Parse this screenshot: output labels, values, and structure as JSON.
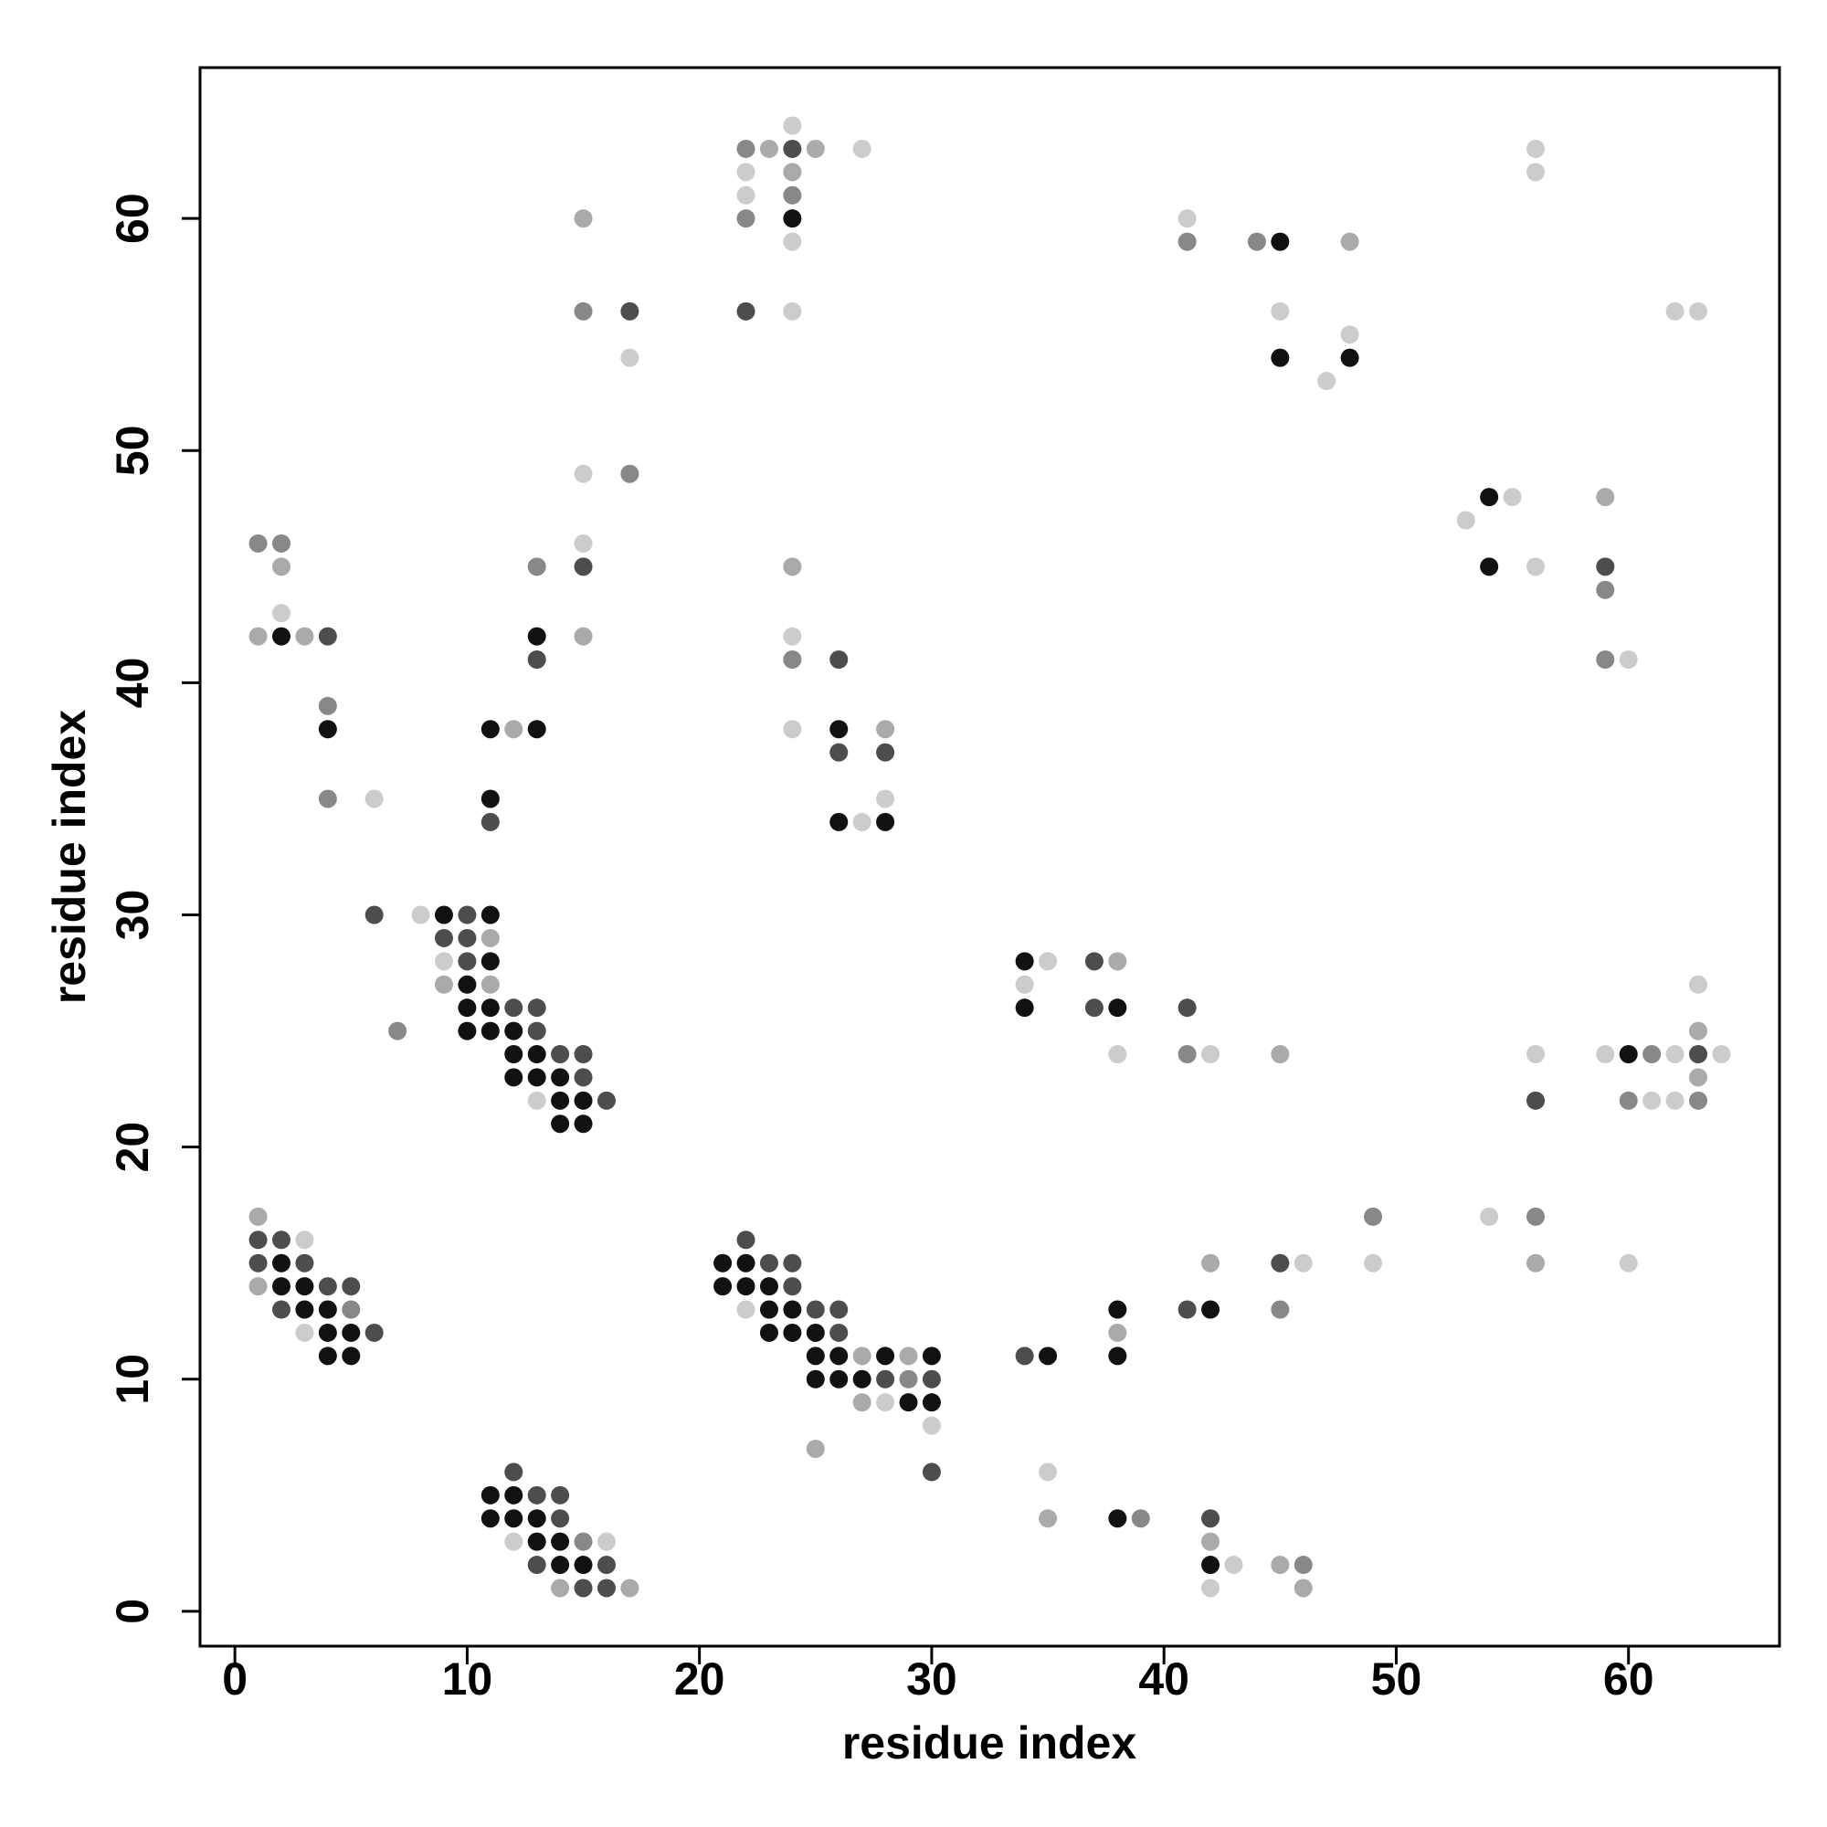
{
  "chart_data": {
    "type": "scatter",
    "xlabel": "residue index",
    "ylabel": "residue index",
    "xlim": [
      -1.5,
      66.5
    ],
    "ylim": [
      -1.5,
      66.5
    ],
    "xticks": [
      0,
      10,
      20,
      30,
      40,
      50,
      60
    ],
    "yticks": [
      0,
      10,
      20,
      30,
      40,
      50,
      60
    ],
    "series": [
      {
        "color": "#111111",
        "x": [
          24,
          13,
          13,
          11,
          11,
          2,
          4,
          26,
          26,
          28,
          9,
          11,
          11,
          10,
          10,
          11,
          10,
          11,
          12,
          12,
          13,
          12,
          13,
          14,
          14,
          15,
          14,
          15,
          2,
          2,
          3,
          3,
          4,
          4,
          5,
          4,
          5,
          11,
          12,
          11,
          12,
          13,
          13,
          14,
          14,
          15,
          21,
          22,
          21,
          22,
          23,
          23,
          24,
          23,
          24,
          25,
          25,
          26,
          28,
          30,
          25,
          26,
          27,
          29,
          30,
          34,
          34,
          38,
          35,
          38,
          38,
          42,
          38,
          42,
          45,
          45,
          48,
          54,
          54,
          60
        ],
        "values": [
          60,
          42,
          38,
          38,
          35,
          42,
          38,
          38,
          34,
          34,
          30,
          30,
          28,
          27,
          26,
          26,
          25,
          25,
          25,
          24,
          24,
          23,
          23,
          23,
          22,
          22,
          21,
          21,
          15,
          14,
          14,
          13,
          13,
          12,
          12,
          11,
          11,
          5,
          5,
          4,
          4,
          4,
          3,
          3,
          2,
          2,
          15,
          15,
          14,
          14,
          14,
          13,
          13,
          12,
          12,
          12,
          11,
          11,
          11,
          11,
          10,
          10,
          10,
          9,
          9,
          28,
          26,
          26,
          11,
          13,
          11,
          13,
          4,
          2,
          59,
          54,
          54,
          48,
          45,
          24
        ]
      },
      {
        "color": "#4d4d4d",
        "x": [
          24,
          22,
          17,
          15,
          13,
          11,
          4,
          26,
          26,
          28,
          6,
          10,
          9,
          10,
          10,
          12,
          13,
          13,
          14,
          15,
          15,
          16,
          1,
          2,
          1,
          3,
          4,
          5,
          2,
          6,
          12,
          13,
          14,
          14,
          13,
          16,
          15,
          16,
          22,
          23,
          24,
          24,
          25,
          26,
          26,
          28,
          30,
          30,
          37,
          37,
          41,
          34,
          41,
          45,
          42,
          59,
          63,
          56
        ],
        "values": [
          63,
          56,
          56,
          45,
          41,
          34,
          42,
          41,
          37,
          37,
          30,
          30,
          29,
          29,
          28,
          26,
          26,
          25,
          24,
          24,
          23,
          22,
          16,
          16,
          15,
          15,
          14,
          14,
          13,
          12,
          6,
          5,
          5,
          4,
          2,
          2,
          1,
          1,
          16,
          15,
          15,
          14,
          13,
          13,
          12,
          10,
          10,
          6,
          28,
          26,
          26,
          11,
          13,
          15,
          4,
          45,
          24,
          22
        ]
      },
      {
        "color": "#888888",
        "x": [
          22,
          24,
          22,
          15,
          17,
          13,
          1,
          2,
          4,
          4,
          24,
          7,
          5,
          15,
          29,
          41,
          45,
          49,
          39,
          46,
          41,
          44,
          59,
          59,
          61,
          60,
          63,
          56
        ],
        "values": [
          63,
          61,
          60,
          56,
          49,
          45,
          46,
          46,
          39,
          35,
          41,
          25,
          13,
          3,
          10,
          24,
          13,
          17,
          4,
          2,
          59,
          59,
          44,
          41,
          24,
          22,
          22,
          17
        ]
      },
      {
        "color": "#aaaaaa",
        "x": [
          23,
          25,
          24,
          15,
          15,
          12,
          2,
          1,
          3,
          24,
          28,
          11,
          9,
          11,
          1,
          1,
          14,
          17,
          27,
          29,
          27,
          25,
          38,
          45,
          38,
          42,
          35,
          42,
          45,
          46,
          48,
          59,
          63,
          63,
          56
        ],
        "values": [
          63,
          63,
          62,
          60,
          42,
          38,
          45,
          42,
          42,
          45,
          38,
          29,
          27,
          27,
          17,
          14,
          1,
          1,
          11,
          11,
          9,
          7,
          28,
          24,
          12,
          15,
          4,
          3,
          2,
          1,
          59,
          48,
          25,
          23,
          15
        ]
      },
      {
        "color": "#cccccc",
        "x": [
          24,
          27,
          22,
          22,
          24,
          24,
          17,
          15,
          15,
          2,
          6,
          24,
          24,
          28,
          27,
          8,
          9,
          13,
          3,
          3,
          12,
          16,
          22,
          28,
          30,
          35,
          34,
          38,
          42,
          46,
          49,
          35,
          43,
          42,
          41,
          45,
          48,
          47,
          56,
          56,
          62,
          63,
          53,
          55,
          56,
          60,
          63,
          56,
          59,
          62,
          64,
          61,
          62,
          54,
          60
        ],
        "values": [
          64,
          63,
          62,
          61,
          59,
          56,
          54,
          49,
          46,
          43,
          35,
          42,
          38,
          35,
          34,
          30,
          28,
          22,
          16,
          12,
          3,
          3,
          13,
          9,
          8,
          28,
          27,
          24,
          24,
          15,
          15,
          6,
          2,
          1,
          60,
          56,
          55,
          53,
          63,
          62,
          56,
          56,
          47,
          48,
          45,
          41,
          27,
          24,
          24,
          24,
          24,
          22,
          22,
          17,
          15
        ]
      }
    ]
  }
}
